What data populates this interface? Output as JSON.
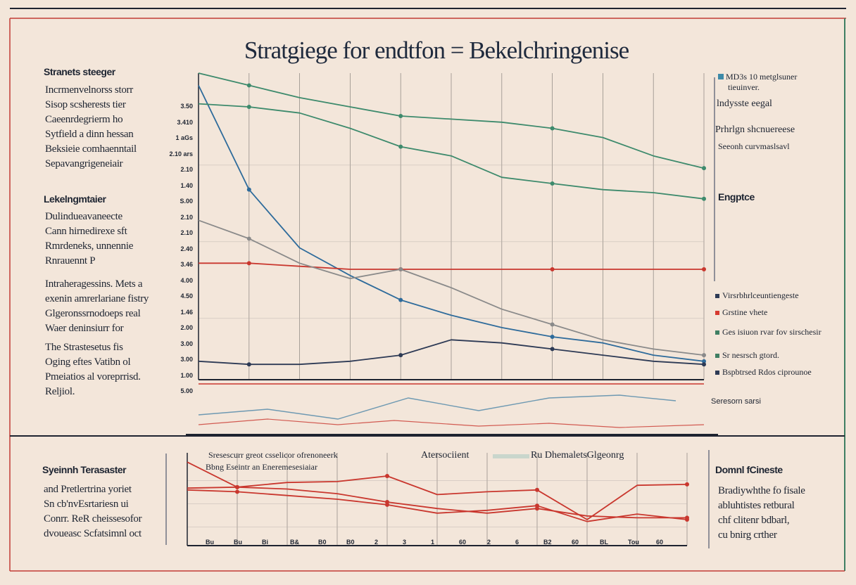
{
  "title": "Stratgiege for endtfon = Bekelchringenise",
  "left_panel": [
    {
      "heading": "Stranets steeger",
      "lines": [
        "Incrmenvelnorss storr",
        "Sisop scsherests tier",
        "Caeenrdegrierm ho",
        "Sytfield a dinn hessan",
        "Beksieie comhaenntail",
        "Sepavangrigeneiair"
      ]
    },
    {
      "heading": "Lekelngmtaier",
      "lines": [
        "Dulindueavaneecte",
        "Cann hirnedirexe sft",
        "Rmrdeneks, unnennie",
        "Rnrauennt P"
      ]
    },
    {
      "heading": "",
      "lines": [
        "Intraheragessins. Mets a",
        "exenin amrerlariane fistry",
        "Glgeronssrnodoeps real",
        "Waer deninsiurr for"
      ]
    },
    {
      "heading": "",
      "lines": [
        "The Strastesetus fis",
        "Oging eftes Vatibn ol",
        "Pmeiatios al voreprrisd.",
        "Reljiol."
      ]
    }
  ],
  "upper_chart_tick_labels": [
    "3.50",
    "3.410",
    "1 aGs",
    "2.10 ars",
    "2.10",
    "1.40",
    "S.00",
    "2.10",
    "2.10",
    "2.40",
    "3.46",
    "4.00",
    "4.50",
    "1.46",
    "2.00",
    "3.00",
    "3.00",
    "1.00",
    "5.00"
  ],
  "right_panel_upper": {
    "legend_lines": [
      "MD3s 10 metglsuner",
      "tieuinver.",
      "lndysste eegal"
    ],
    "heading": "Prhrlgn shcnuereese",
    "sub": "Seeonh curvmaslsavl",
    "label": "Engptce"
  },
  "right_panel_legend": [
    {
      "color": "#2d3a55",
      "text": "Virsrbhrlceuntiengeste"
    },
    {
      "color": "#d6392f",
      "text": "Grstine vhete"
    },
    {
      "color": "#3f7f63",
      "text": "Ges isiuon rvar fov sirschesir"
    },
    {
      "color": "#3f7f63",
      "text": "Sr nesrsch gtord."
    },
    {
      "color": "#2d3a55",
      "text": "Bspbtrsed Rdos ciprounoe"
    }
  ],
  "upper_right_note": "Seresorn sarsi",
  "lower_left": {
    "heading": "Syeinnh Terasaster",
    "lines": [
      "and Pretlertrina yoriet",
      "Sn cb'nvEsrtariesn ui",
      "Conrr. ReR cheissesofor",
      "dvoueasc Scfatsimnl oct"
    ]
  },
  "lower_chart": {
    "legend_line1": "Sresescurr greot csselicor ofrenoneerk",
    "legend_line2": "Bbng Eseintr an Eneremesesiaiar",
    "center_label": "Atersociient",
    "right_label": "Ru DhemaletsGlgeonrg",
    "axis_labels": [
      "Bu",
      "Bu",
      "Bi",
      "B&",
      "B0",
      "B0",
      "2",
      "3",
      "1",
      "60",
      "2",
      "6",
      "B2",
      "60",
      "BL",
      "Tou",
      "60"
    ]
  },
  "lower_right": {
    "heading": "Domnl fCineste",
    "lines": [
      "Bradiywhthe fo fisale",
      "abluhtistes retbural",
      "chf clitenr bdbarl,",
      "cu bnirg crther"
    ]
  },
  "chart_data": [
    {
      "type": "line",
      "title": "Stratgiege for endtfon = Bekelchringenise",
      "xlabel": "",
      "ylabel": "",
      "x": [
        0,
        1,
        2,
        3,
        4,
        5,
        6,
        7,
        8,
        9,
        10
      ],
      "ylim": [
        0,
        10
      ],
      "grid": true,
      "series": [
        {
          "color": "#2e6b9b",
          "values": [
            9.6,
            6.2,
            4.3,
            3.4,
            2.6,
            2.1,
            1.7,
            1.4,
            1.2,
            0.8,
            0.6
          ]
        },
        {
          "color": "#3d8a6c",
          "values": [
            9.0,
            8.9,
            8.7,
            8.2,
            7.6,
            7.3,
            6.6,
            6.4,
            6.2,
            6.1,
            5.9
          ]
        },
        {
          "color": "#3d8a6c",
          "values": [
            10.0,
            9.6,
            9.2,
            8.9,
            8.6,
            8.5,
            8.4,
            8.2,
            7.9,
            7.3,
            6.9
          ]
        },
        {
          "color": "#c9372e",
          "values": [
            3.8,
            3.8,
            3.7,
            3.6,
            3.6,
            3.6,
            3.6,
            3.6,
            3.6,
            3.6,
            3.6
          ]
        },
        {
          "color": "#8a8a8a",
          "values": [
            5.2,
            4.6,
            3.8,
            3.3,
            3.6,
            3.0,
            2.3,
            1.8,
            1.3,
            1.0,
            0.8
          ]
        },
        {
          "color": "#2d3a55",
          "values": [
            0.6,
            0.5,
            0.5,
            0.6,
            0.8,
            1.3,
            1.2,
            1.0,
            0.8,
            0.6,
            0.5
          ]
        }
      ]
    },
    {
      "type": "line",
      "xlabel": "",
      "ylabel": "",
      "x": [
        0,
        1,
        2,
        3,
        4,
        5,
        6,
        7,
        8,
        9,
        10
      ],
      "ylim": [
        0,
        10
      ],
      "grid": true,
      "series": [
        {
          "color": "#c9372e",
          "values": [
            9.0,
            6.3,
            6.8,
            6.9,
            7.5,
            5.5,
            5.8,
            6.0,
            2.8,
            6.5,
            6.6
          ]
        },
        {
          "color": "#c9372e",
          "values": [
            6.0,
            5.8,
            5.4,
            5.0,
            4.4,
            3.5,
            3.8,
            4.3,
            2.6,
            3.4,
            2.8
          ]
        },
        {
          "color": "#c9372e",
          "values": [
            6.2,
            6.3,
            6.1,
            5.6,
            4.7,
            4.0,
            3.5,
            4.0,
            3.2,
            3.0,
            3.0
          ]
        }
      ]
    }
  ]
}
